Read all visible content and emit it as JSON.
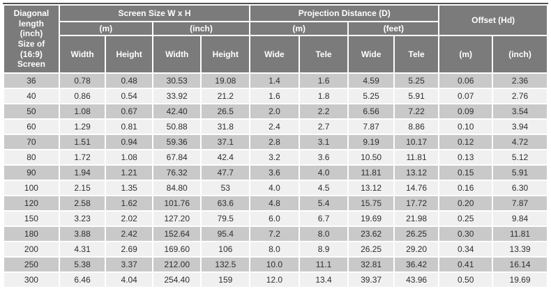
{
  "table": {
    "corner_header": "Diagonal\nlength\n(inch)\nSize of\n(16:9)\nScreen",
    "groups": {
      "screen_size": "Screen Size W x H",
      "projection": "Projection Distance (D)",
      "offset": "Offset (Hd)"
    },
    "units": {
      "screen_m": "(m)",
      "screen_inch": "(inch)",
      "proj_m": "(m)",
      "proj_feet": "(feet)"
    },
    "columns": [
      "Width",
      "Height",
      "Width",
      "Height",
      "Wide",
      "Tele",
      "Wide",
      "Tele",
      "(m)",
      "(inch)"
    ],
    "rows": [
      [
        "36",
        "0.78",
        "0.48",
        "30.53",
        "19.08",
        "1.4",
        "1.6",
        "4.59",
        "5.25",
        "0.06",
        "2.36"
      ],
      [
        "40",
        "0.86",
        "0.54",
        "33.92",
        "21.2",
        "1.6",
        "1.8",
        "5.25",
        "5.91",
        "0.07",
        "2.76"
      ],
      [
        "50",
        "1.08",
        "0.67",
        "42.40",
        "26.5",
        "2.0",
        "2.2",
        "6.56",
        "7.22",
        "0.09",
        "3.54"
      ],
      [
        "60",
        "1.29",
        "0.81",
        "50.88",
        "31.8",
        "2.4",
        "2.7",
        "7.87",
        "8.86",
        "0.10",
        "3.94"
      ],
      [
        "70",
        "1.51",
        "0.94",
        "59.36",
        "37.1",
        "2.8",
        "3.1",
        "9.19",
        "10.17",
        "0.12",
        "4.72"
      ],
      [
        "80",
        "1.72",
        "1.08",
        "67.84",
        "42.4",
        "3.2",
        "3.6",
        "10.50",
        "11.81",
        "0.13",
        "5.12"
      ],
      [
        "90",
        "1.94",
        "1.21",
        "76.32",
        "47.7",
        "3.6",
        "4.0",
        "11.81",
        "13.12",
        "0.15",
        "5.91"
      ],
      [
        "100",
        "2.15",
        "1.35",
        "84.80",
        "53",
        "4.0",
        "4.5",
        "13.12",
        "14.76",
        "0.16",
        "6.30"
      ],
      [
        "120",
        "2.58",
        "1.62",
        "101.76",
        "63.6",
        "4.8",
        "5.4",
        "15.75",
        "17.72",
        "0.20",
        "7.87"
      ],
      [
        "150",
        "3.23",
        "2.02",
        "127.20",
        "79.5",
        "6.0",
        "6.7",
        "19.69",
        "21.98",
        "0.25",
        "9.84"
      ],
      [
        "180",
        "3.88",
        "2.42",
        "152.64",
        "95.4",
        "7.2",
        "8.0",
        "23.62",
        "26.25",
        "0.30",
        "11.81"
      ],
      [
        "200",
        "4.31",
        "2.69",
        "169.60",
        "106",
        "8.0",
        "8.9",
        "26.25",
        "29.20",
        "0.34",
        "13.39"
      ],
      [
        "250",
        "5.38",
        "3.37",
        "212.00",
        "132.5",
        "10.0",
        "11.1",
        "32.81",
        "36.42",
        "0.41",
        "16.14"
      ],
      [
        "300",
        "6.46",
        "4.04",
        "254.40",
        "159",
        "12.0",
        "13.4",
        "39.37",
        "43.96",
        "0.50",
        "19.69"
      ]
    ]
  },
  "colors": {
    "header_bg": "#7b7b7b",
    "header_text": "#ffffff",
    "row_dark": "#c9c9c9",
    "row_light": "#f0f0f0",
    "cell_text": "#2e2e2e",
    "border": "#ffffff",
    "top_line": "#4f4f4f"
  }
}
